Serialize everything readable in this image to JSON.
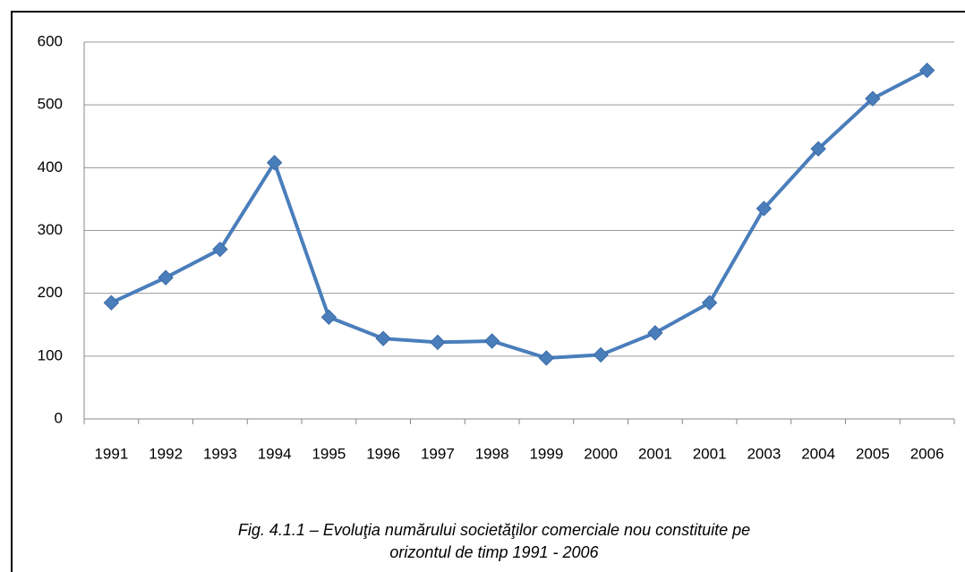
{
  "chart_data": {
    "type": "line",
    "title": [
      "Fig. 4.1.1 – Evoluţia numărului  societăţilor comerciale nou constituite pe",
      "orizontul de timp 1991 - 2006"
    ],
    "categories": [
      "1991",
      "1992",
      "1993",
      "1994",
      "1995",
      "1996",
      "1997",
      "1998",
      "1999",
      "2000",
      "2001",
      "2001",
      "2003",
      "2004",
      "2005",
      "2006"
    ],
    "values": [
      185,
      225,
      270,
      408,
      162,
      128,
      122,
      124,
      97,
      102,
      137,
      185,
      335,
      430,
      510,
      555
    ],
    "color": "#4a7ebb",
    "ylim": [
      0,
      600
    ],
    "yticks": [
      0,
      100,
      200,
      300,
      400,
      500,
      600
    ],
    "grid": true
  }
}
